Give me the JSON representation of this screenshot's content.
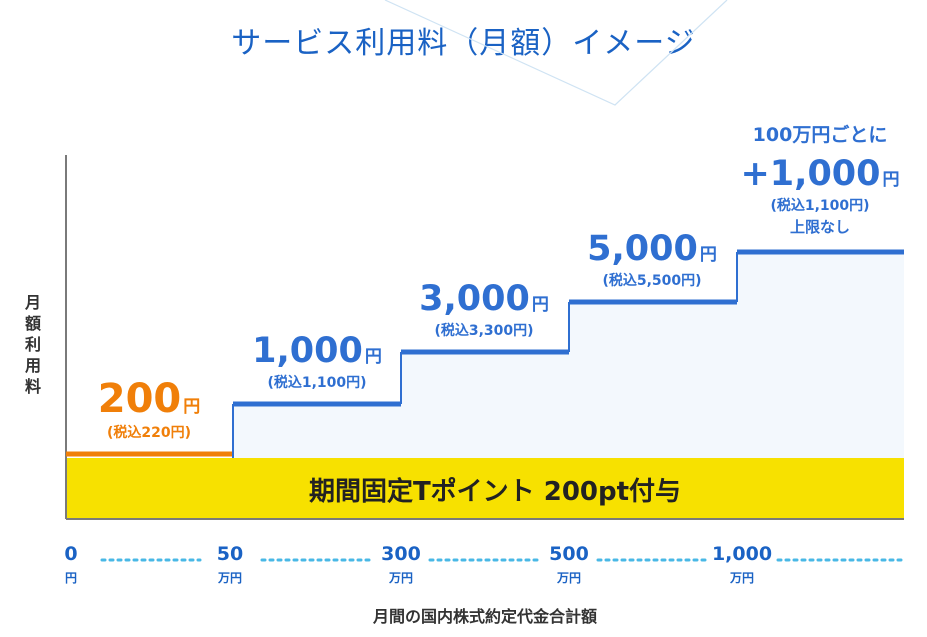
{
  "title": "サービス利用料（月額）イメージ",
  "ylabel": "月額利用料",
  "xlabel": "月間の国内株式約定代金合計額",
  "band_label": "期間固定Tポイント 200pt付与",
  "colors": {
    "title": "#1a62c4",
    "step_blue": "#2f6fd1",
    "step_orange": "#f07f09",
    "band_yellow": "#f7e100",
    "fill": "#f3f8fd",
    "axis": "#7a7a7a",
    "dots": "#49b8e6",
    "text_dark": "#333333"
  },
  "chart_data": {
    "type": "step",
    "title": "サービス利用料（月額）イメージ",
    "xlabel": "月間の国内株式約定代金合計額",
    "ylabel": "月額利用料",
    "x_ticks": [
      {
        "value": "0",
        "unit": "円"
      },
      {
        "value": "50",
        "unit": "万円"
      },
      {
        "value": "300",
        "unit": "万円"
      },
      {
        "value": "500",
        "unit": "万円"
      },
      {
        "value": "1,000",
        "unit": "万円"
      }
    ],
    "steps": [
      {
        "range": "0〜50万円",
        "fee": 200,
        "fee_label": "200",
        "unit": "円",
        "tax_incl": "(税込220円)",
        "color": "orange"
      },
      {
        "range": "50〜300万円",
        "fee": 1000,
        "fee_label": "1,000",
        "unit": "円",
        "tax_incl": "(税込1,100円)",
        "color": "blue"
      },
      {
        "range": "300〜500万円",
        "fee": 3000,
        "fee_label": "3,000",
        "unit": "円",
        "tax_incl": "(税込3,300円)",
        "color": "blue"
      },
      {
        "range": "500〜1,000万円",
        "fee": 5000,
        "fee_label": "5,000",
        "unit": "円",
        "tax_incl": "(税込5,500円)",
        "color": "blue"
      },
      {
        "range": "1,000万円〜",
        "fee": null,
        "pre": "100万円ごとに",
        "fee_label": "+1,000",
        "unit": "円",
        "tax_incl": "(税込1,100円)",
        "note": "上限なし",
        "color": "blue"
      }
    ]
  }
}
